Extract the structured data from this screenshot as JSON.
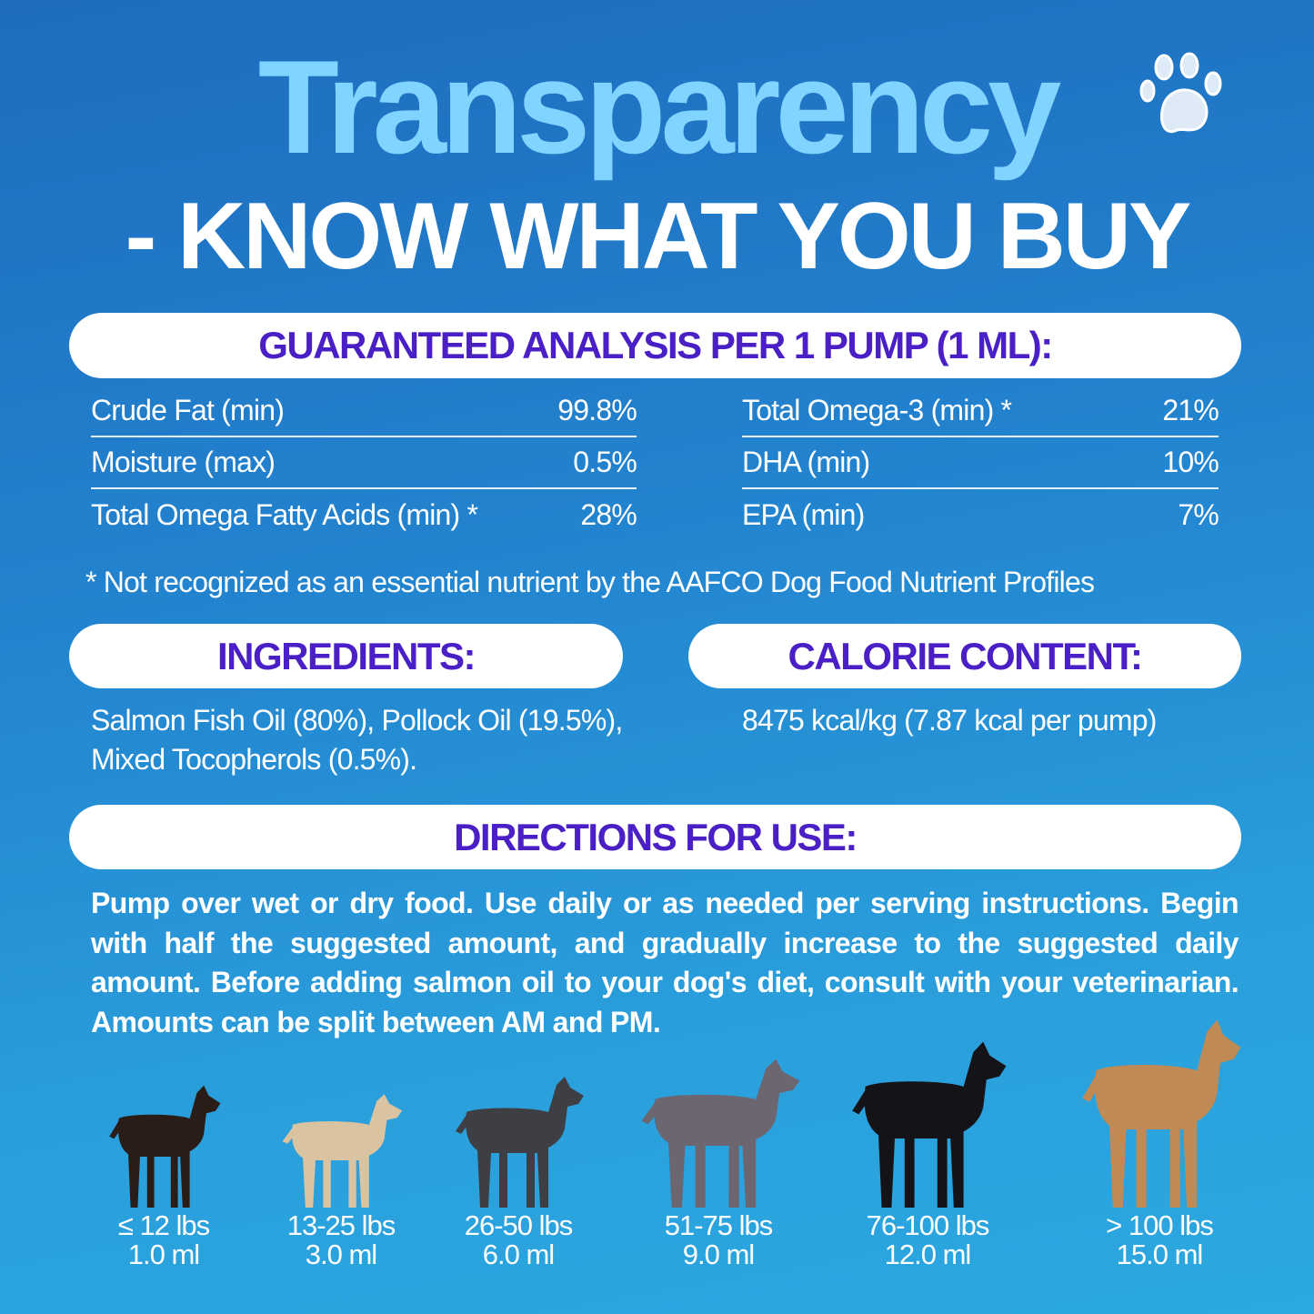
{
  "header": {
    "title": "Transparency",
    "subtitle": "- KNOW WHAT YOU BUY",
    "icon": "paw-print-icon"
  },
  "colors": {
    "background_top": "#1f6cbe",
    "background_bottom": "#2ba8e0",
    "title": "#80d4ff",
    "heading_purple": "#4a20c6"
  },
  "analysis": {
    "heading": "GUARANTEED ANALYSIS PER 1 PUMP (1 ML):",
    "left": [
      {
        "label": "Crude Fat (min)",
        "value": "99.8%"
      },
      {
        "label": "Moisture (max)",
        "value": "0.5%"
      },
      {
        "label": "Total Omega Fatty Acids (min) *",
        "value": "28%"
      }
    ],
    "right": [
      {
        "label": "Total Omega-3 (min) *",
        "value": "21%"
      },
      {
        "label": "DHA (min)",
        "value": "10%"
      },
      {
        "label": "EPA (min)",
        "value": "7%"
      }
    ],
    "footnote": "* Not recognized as an essential nutrient by the AAFCO Dog Food Nutrient Profiles"
  },
  "ingredients": {
    "heading": "INGREDIENTS:",
    "line1": "Salmon Fish Oil (80%), Pollock Oil (19.5%),",
    "line2": "Mixed Tocopherols (0.5%)."
  },
  "calories": {
    "heading": "CALORIE CONTENT:",
    "text": "8475 kcal/kg (7.87 kcal per pump)"
  },
  "directions": {
    "heading": "DIRECTIONS FOR USE:",
    "text": "Pump over wet or dry food. Use daily or as needed per serving instructions. Begin with half the suggested amount, and gradually increase to the suggested daily amount. Before adding salmon oil to your dog's diet, consult with your veterinarian. Amounts can be split between AM and PM."
  },
  "dosage": [
    {
      "weight": "≤ 12 lbs",
      "amount": "1.0 ml",
      "dog_color": "#2a1d18"
    },
    {
      "weight": "13-25 lbs",
      "amount": "3.0 ml",
      "dog_color": "#d9c3a0"
    },
    {
      "weight": "26-50 lbs",
      "amount": "6.0 ml",
      "dog_color": "#3e3f44"
    },
    {
      "weight": "51-75 lbs",
      "amount": "9.0 ml",
      "dog_color": "#6b6670"
    },
    {
      "weight": "76-100 lbs",
      "amount": "12.0 ml",
      "dog_color": "#141418"
    },
    {
      "weight": "> 100 lbs",
      "amount": "15.0 ml",
      "dog_color": "#c08a55"
    }
  ]
}
